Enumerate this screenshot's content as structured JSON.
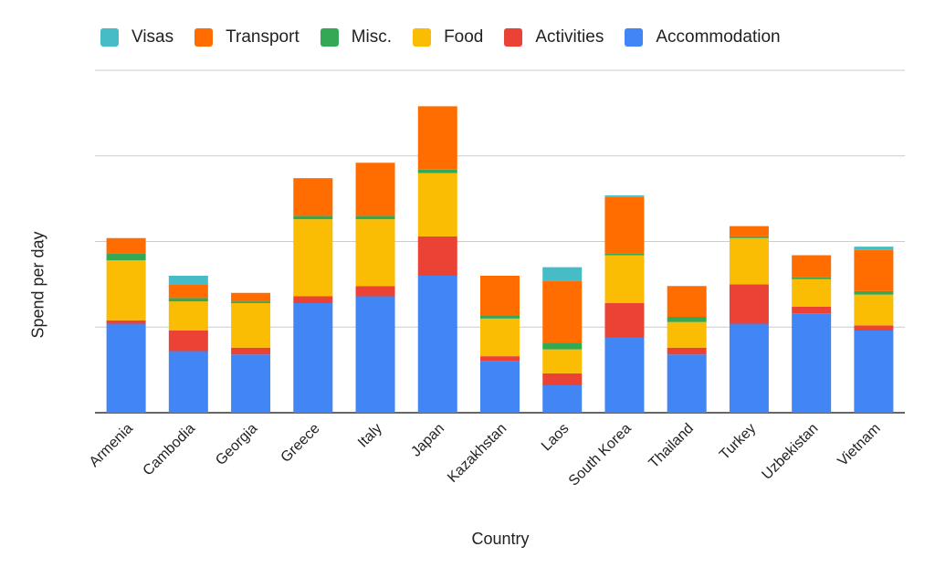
{
  "chart_data": {
    "type": "bar",
    "stacked": true,
    "xlabel": "Country",
    "ylabel": "Spend per day",
    "ylim": [
      0,
      100
    ],
    "grid": true,
    "legend_position": "top",
    "categories": [
      "Armenia",
      "Cambodia",
      "Georgia",
      "Greece",
      "Italy",
      "Japan",
      "Kazakhstan",
      "Laos",
      "South Korea",
      "Thailand",
      "Turkey",
      "Uzbekistan",
      "Vietnam"
    ],
    "series": [
      {
        "name": "Accommodation",
        "color": "#4285f4",
        "values": [
          26,
          18,
          17,
          32,
          34,
          40,
          15,
          8,
          22,
          17,
          26,
          29,
          24
        ]
      },
      {
        "name": "Activities",
        "color": "#ea4335",
        "values": [
          1,
          6,
          2,
          2,
          3,
          11.5,
          1.5,
          3.5,
          10,
          2,
          11.5,
          2,
          1.5
        ]
      },
      {
        "name": "Food",
        "color": "#fbbc04",
        "values": [
          17.5,
          8.5,
          13,
          22.5,
          19.5,
          18.5,
          11,
          7,
          14,
          7.5,
          13.5,
          8,
          9
        ]
      },
      {
        "name": "Misc.",
        "color": "#34a853",
        "values": [
          2,
          1,
          0.5,
          1,
          1,
          1,
          1,
          2,
          0.5,
          1.5,
          0.5,
          0.5,
          1
        ]
      },
      {
        "name": "Transport",
        "color": "#ff6d01",
        "values": [
          4.5,
          4,
          2.5,
          11,
          15.5,
          18.5,
          11.5,
          18,
          16.5,
          9,
          3,
          6.5,
          12
        ]
      },
      {
        "name": "Visas",
        "color": "#46bdc6",
        "values": [
          0,
          2.5,
          0,
          0,
          0,
          0,
          0,
          4,
          0.5,
          0,
          0,
          0,
          1
        ]
      }
    ],
    "legend_order": [
      "Visas",
      "Transport",
      "Misc.",
      "Food",
      "Activities",
      "Accommodation"
    ]
  }
}
